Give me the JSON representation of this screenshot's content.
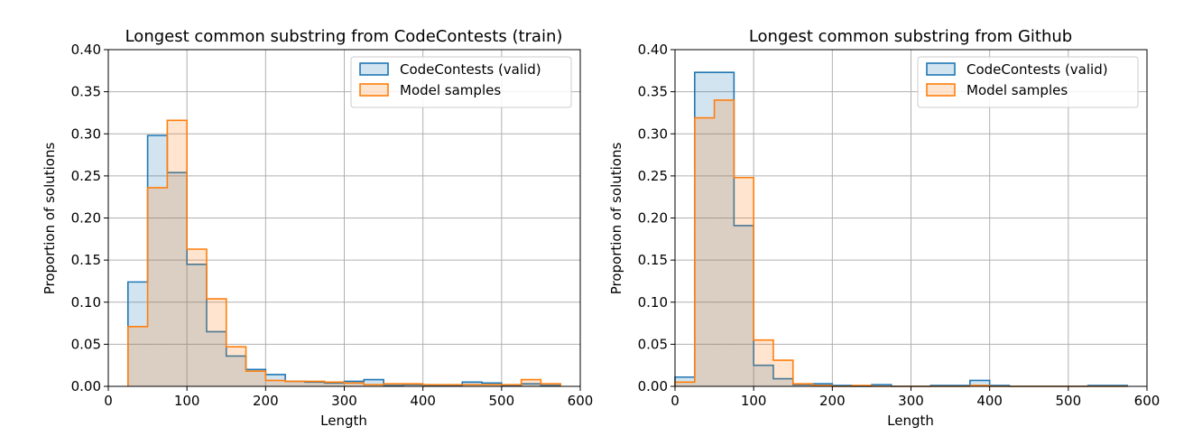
{
  "colors": {
    "series_a": "#1f77b4",
    "series_b": "#ff7f0e",
    "grid": "#b0b0b0",
    "legend_border": "#cccccc"
  },
  "chart_data": [
    {
      "type": "histogram",
      "title": "Longest common substring from CodeContests (train)",
      "xlabel": "Length",
      "ylabel": "Proportion of solutions",
      "xlim": [
        0,
        600
      ],
      "ylim": [
        0,
        0.4
      ],
      "xticks": [
        "0",
        "100",
        "200",
        "300",
        "400",
        "500",
        "600"
      ],
      "yticks": [
        "0.00",
        "0.05",
        "0.10",
        "0.15",
        "0.20",
        "0.25",
        "0.30",
        "0.35",
        "0.40"
      ],
      "grid": true,
      "legend_position": "top-right",
      "bin_edges": [
        25,
        50,
        75,
        100,
        125,
        150,
        175,
        200,
        225,
        250,
        275,
        300,
        325,
        350,
        375,
        400,
        425,
        450,
        475,
        500,
        525,
        550,
        575
      ],
      "series": [
        {
          "name": "CodeContests (valid)",
          "values": [
            0.124,
            0.298,
            0.254,
            0.145,
            0.065,
            0.036,
            0.02,
            0.014,
            0.006,
            0.005,
            0.004,
            0.006,
            0.008,
            0.001,
            0.002,
            0.001,
            0.001,
            0.005,
            0.004,
            0.001,
            0.003,
            0.001
          ]
        },
        {
          "name": "Model samples",
          "values": [
            0.071,
            0.236,
            0.316,
            0.163,
            0.104,
            0.047,
            0.018,
            0.007,
            0.006,
            0.006,
            0.005,
            0.004,
            0.002,
            0.003,
            0.003,
            0.002,
            0.002,
            0.002,
            0.002,
            0.002,
            0.008,
            0.003
          ]
        }
      ]
    },
    {
      "type": "histogram",
      "title": "Longest common substring from Github",
      "xlabel": "Length",
      "ylabel": "Proportion of solutions",
      "xlim": [
        0,
        600
      ],
      "ylim": [
        0,
        0.4
      ],
      "xticks": [
        "0",
        "100",
        "200",
        "300",
        "400",
        "500",
        "600"
      ],
      "yticks": [
        "0.00",
        "0.05",
        "0.10",
        "0.15",
        "0.20",
        "0.25",
        "0.30",
        "0.35",
        "0.40"
      ],
      "grid": true,
      "legend_position": "top-right",
      "bin_edges": [
        0,
        25,
        50,
        75,
        100,
        125,
        150,
        175,
        200,
        225,
        250,
        275,
        300,
        325,
        350,
        375,
        400,
        425,
        450,
        475,
        500,
        525,
        550,
        575
      ],
      "series": [
        {
          "name": "CodeContests (valid)",
          "values": [
            0.011,
            0.373,
            0.373,
            0.191,
            0.025,
            0.009,
            0.002,
            0.003,
            0.001,
            0.0,
            0.002,
            0.0,
            0.0,
            0.001,
            0.001,
            0.007,
            0.001,
            0.0,
            0.0,
            0.0,
            0.0,
            0.001,
            0.001
          ]
        },
        {
          "name": "Model samples",
          "values": [
            0.005,
            0.319,
            0.34,
            0.248,
            0.055,
            0.031,
            0.003,
            0.001,
            0.0,
            0.001,
            0.0,
            0.0,
            0.0,
            0.0,
            0.0,
            0.001,
            0.0,
            0.0,
            0.0,
            0.0,
            0.0,
            0.0,
            0.0
          ]
        }
      ]
    }
  ]
}
